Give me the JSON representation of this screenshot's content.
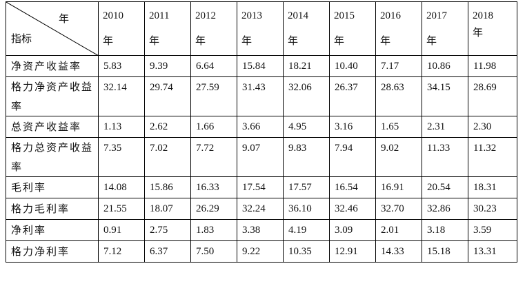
{
  "header": {
    "corner_top": "年",
    "corner_bottom": "指标",
    "years": [
      {
        "year": "2010",
        "suffix": "年"
      },
      {
        "year": "2011",
        "suffix": "年"
      },
      {
        "year": "2012",
        "suffix": "年"
      },
      {
        "year": "2013",
        "suffix": "年"
      },
      {
        "year": "2014",
        "suffix": "年"
      },
      {
        "year": "2015",
        "suffix": "年"
      },
      {
        "year": "2016",
        "suffix": "年"
      },
      {
        "year": "2017",
        "suffix": "年"
      },
      {
        "year": "2018",
        "suffix": "年"
      }
    ]
  },
  "rows": [
    {
      "label": "净资产收益率",
      "values": [
        "5.83",
        "9.39",
        "6.64",
        "15.84",
        "18.21",
        "10.40",
        "7.17",
        "10.86",
        "11.98"
      ]
    },
    {
      "label": "格力净资产收益率",
      "values": [
        "32.14",
        "29.74",
        "27.59",
        "31.43",
        "32.06",
        "26.37",
        "28.63",
        "34.15",
        "28.69"
      ]
    },
    {
      "label": "总资产收益率",
      "values": [
        "1.13",
        "2.62",
        "1.66",
        "3.66",
        "4.95",
        "3.16",
        "1.65",
        "2.31",
        "2.30"
      ]
    },
    {
      "label": "格力总资产收益率",
      "values": [
        "7.35",
        "7.02",
        "7.72",
        "9.07",
        "9.83",
        "7.94",
        "9.02",
        "11.33",
        "11.32"
      ]
    },
    {
      "label": "毛利率",
      "values": [
        "14.08",
        "15.86",
        "16.33",
        "17.54",
        "17.57",
        "16.54",
        "16.91",
        "20.54",
        "18.31"
      ]
    },
    {
      "label": "格力毛利率",
      "values": [
        "21.55",
        "18.07",
        "26.29",
        "32.24",
        "36.10",
        "32.46",
        "32.70",
        "32.86",
        "30.23"
      ]
    },
    {
      "label": "净利率",
      "values": [
        "0.91",
        "2.75",
        "1.83",
        "3.38",
        "4.19",
        "3.09",
        "2.01",
        "3.18",
        "3.59"
      ]
    },
    {
      "label": "格力净利率",
      "values": [
        "7.12",
        "6.37",
        "7.50",
        "9.22",
        "10.35",
        "12.91",
        "14.33",
        "15.18",
        "13.31"
      ]
    }
  ]
}
